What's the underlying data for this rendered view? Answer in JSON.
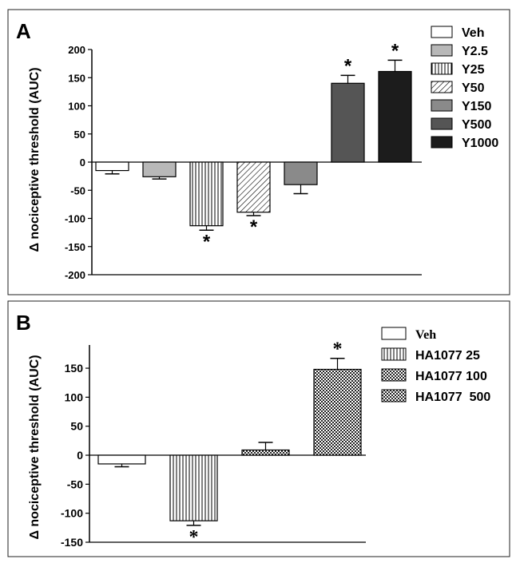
{
  "chart_data": [
    {
      "panel_label": "A",
      "type": "bar",
      "ylabel": "Δ nociceptive threshold (AUC)",
      "ylim": [
        -200,
        200
      ],
      "yticks": [
        -200,
        -150,
        -100,
        -50,
        0,
        50,
        100,
        150,
        200
      ],
      "legend_position": "right",
      "series": [
        {
          "name": "Veh",
          "value": -15,
          "error": 6,
          "significant": false,
          "fill": "white"
        },
        {
          "name": "Y2.5",
          "value": -26,
          "error": 4,
          "significant": false,
          "fill": "#b8b8b8"
        },
        {
          "name": "Y25",
          "value": -113,
          "error": 8,
          "significant": true,
          "fill": "vertical-lines"
        },
        {
          "name": "Y50",
          "value": -89,
          "error": 6,
          "significant": true,
          "fill": "diagonal-lines"
        },
        {
          "name": "Y150",
          "value": -40,
          "error": 16,
          "significant": false,
          "fill": "#8a8a8a"
        },
        {
          "name": "Y500",
          "value": 140,
          "error": 14,
          "significant": true,
          "fill": "#555555"
        },
        {
          "name": "Y1000",
          "value": 161,
          "error": 20,
          "significant": true,
          "fill": "#1c1c1c"
        }
      ],
      "significance_marker": "*"
    },
    {
      "panel_label": "B",
      "type": "bar",
      "ylabel": "Δ nociceptive threshold (AUC)",
      "ylim": [
        -150,
        190
      ],
      "yticks": [
        -150,
        -100,
        -50,
        0,
        50,
        100,
        150
      ],
      "legend_position": "right",
      "series": [
        {
          "name": "Veh",
          "value": -15,
          "error": 5,
          "significant": false,
          "fill": "white"
        },
        {
          "name": "HA1077 25",
          "value": -113,
          "error": 8,
          "significant": true,
          "fill": "vertical-lines"
        },
        {
          "name": "HA1077 100",
          "value": 9,
          "error": 13,
          "significant": false,
          "fill": "checker"
        },
        {
          "name": "HA1077  500",
          "value": 148,
          "error": 19,
          "significant": true,
          "fill": "checker"
        }
      ],
      "significance_marker": "*"
    }
  ]
}
